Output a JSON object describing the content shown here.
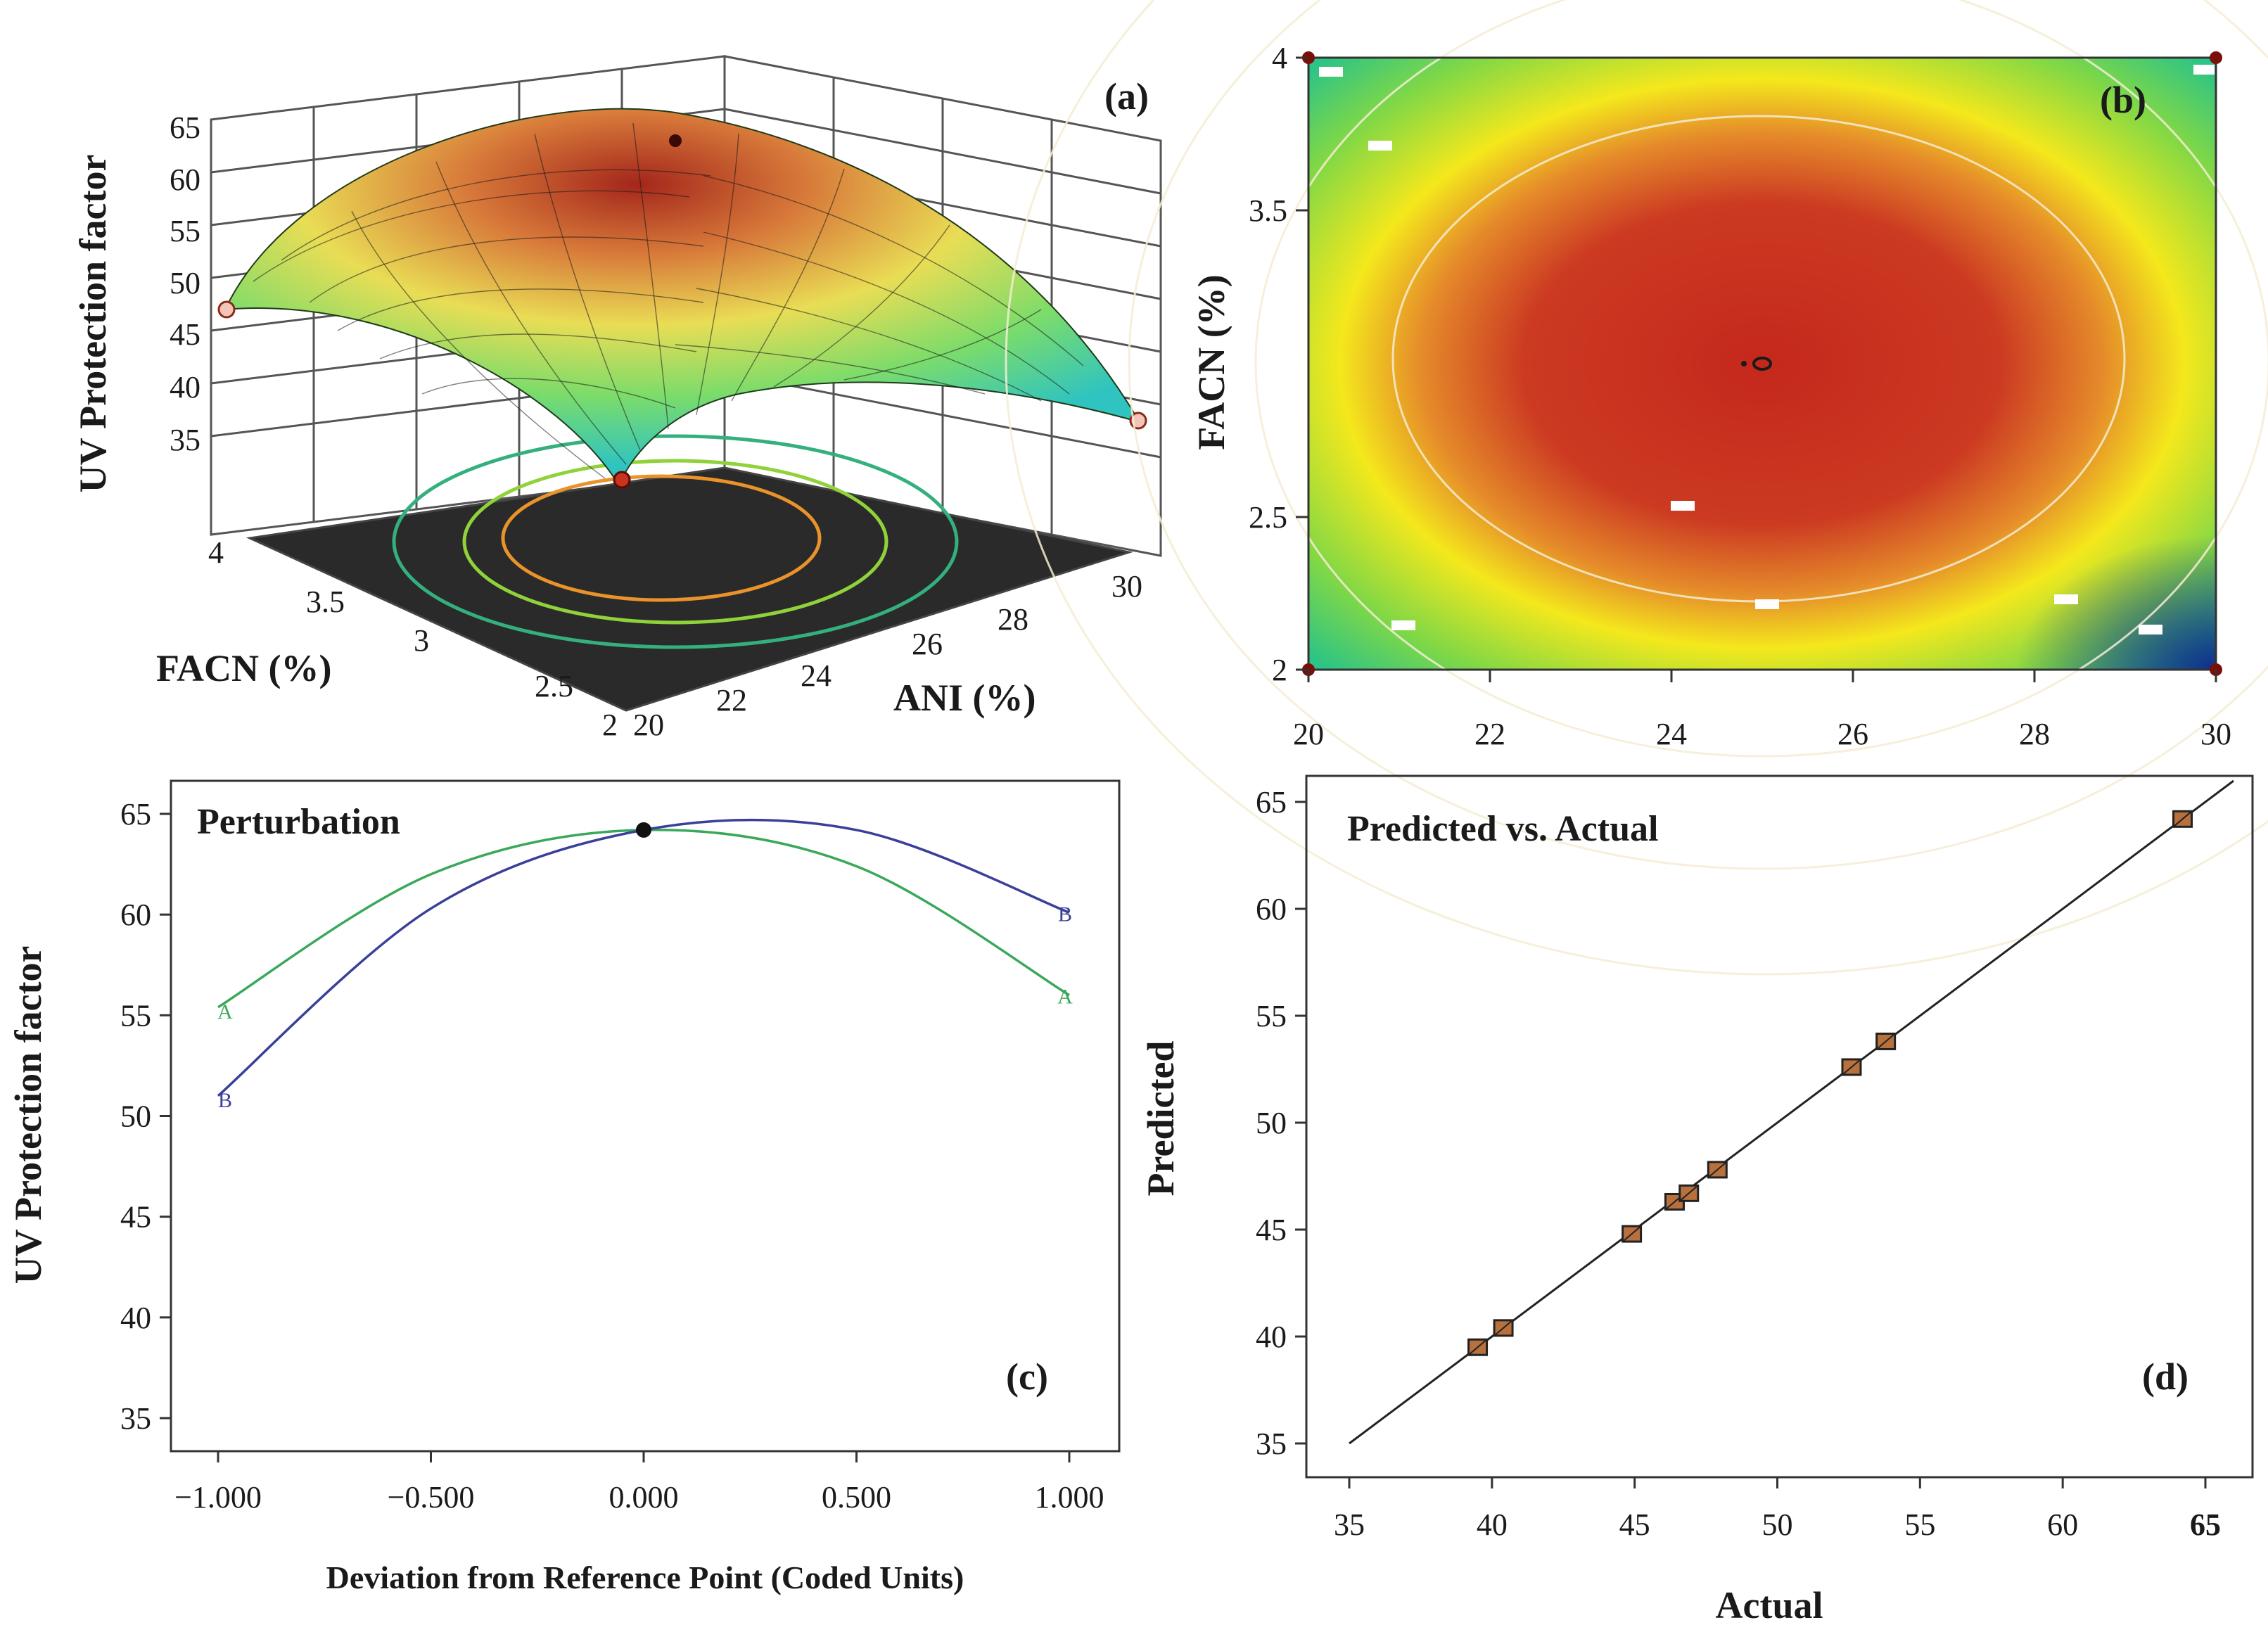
{
  "chart_data": [
    {
      "id": "a",
      "type": "surface3d",
      "panel_label": "(a)",
      "zlabel": "UV Protection factor",
      "xlabel": "ANI (%)",
      "ylabel": "FACN (%)",
      "z_ticks": [
        "35",
        "40",
        "45",
        "50",
        "55",
        "60",
        "65"
      ],
      "x_ticks": [
        "20",
        "22",
        "24",
        "26",
        "28",
        "30"
      ],
      "y_ticks": [
        "2",
        "2.5",
        "3",
        "3.5",
        "4"
      ],
      "x_range": [
        20,
        30
      ],
      "y_range": [
        2,
        4
      ],
      "z_range": [
        35,
        65
      ],
      "peak": {
        "ani": 25,
        "facn": 3,
        "uvpf": 64.2
      },
      "corner_points": [
        {
          "ani": 20,
          "facn": 4,
          "uvpf": 47.5
        },
        {
          "ani": 30,
          "facn": 2,
          "uvpf": 40.0
        },
        {
          "ani": 20,
          "facn": 2,
          "uvpf": 36.5
        }
      ]
    },
    {
      "id": "b",
      "type": "contour",
      "panel_label": "(b)",
      "ylabel": "FACN (%)",
      "x_ticks": [
        "20",
        "22",
        "24",
        "26",
        "28",
        "30"
      ],
      "y_ticks": [
        "2",
        "2.5",
        "3.5",
        "4"
      ],
      "x_range": [
        20,
        30
      ],
      "y_range": [
        2,
        4
      ],
      "optimum": {
        "ani": 25,
        "facn": 3
      },
      "design_points": [
        {
          "ani": 20,
          "facn": 4
        },
        {
          "ani": 30,
          "facn": 4
        },
        {
          "ani": 20,
          "facn": 2
        },
        {
          "ani": 30,
          "facn": 2
        },
        {
          "ani": 25,
          "facn": 3
        }
      ]
    },
    {
      "id": "c",
      "type": "line",
      "panel_label": "(c)",
      "title": "Perturbation",
      "xlabel": "Deviation from Reference Point (Coded Units)",
      "ylabel": "UV Protection factor",
      "x_ticks": [
        "−1.000",
        "−0.500",
        "0.000",
        "0.500",
        "1.000"
      ],
      "y_ticks": [
        "35",
        "40",
        "45",
        "50",
        "55",
        "60",
        "65"
      ],
      "xlim": [
        -1,
        1
      ],
      "ylim": [
        35,
        65
      ],
      "reference_point": {
        "x": 0,
        "y": 64.2
      },
      "series": [
        {
          "name": "A",
          "color": "#3aa85a",
          "x": [
            -1,
            -0.5,
            0,
            0.5,
            1
          ],
          "y": [
            55.4,
            62.0,
            64.2,
            62.4,
            56.0
          ]
        },
        {
          "name": "B",
          "color": "#3a3f99",
          "x": [
            -1,
            -0.5,
            0,
            0.5,
            1
          ],
          "y": [
            51.0,
            60.3,
            64.2,
            64.2,
            60.1
          ]
        }
      ]
    },
    {
      "id": "d",
      "type": "scatter",
      "panel_label": "(d)",
      "title": "Predicted vs. Actual",
      "xlabel": "Actual",
      "ylabel": "Predicted",
      "x_ticks": [
        "35",
        "40",
        "45",
        "50",
        "55",
        "60",
        "65"
      ],
      "y_ticks": [
        "35",
        "40",
        "45",
        "50",
        "55",
        "60",
        "65"
      ],
      "xlim": [
        33.5,
        66.5
      ],
      "ylim": [
        33.5,
        66
      ],
      "fit_line": {
        "from": [
          35,
          35
        ],
        "to": [
          65,
          65
        ]
      },
      "points": [
        {
          "actual": 39.5,
          "predicted": 39.5
        },
        {
          "actual": 40.4,
          "predicted": 40.4
        },
        {
          "actual": 44.9,
          "predicted": 44.8
        },
        {
          "actual": 46.4,
          "predicted": 46.3
        },
        {
          "actual": 46.9,
          "predicted": 46.7
        },
        {
          "actual": 47.9,
          "predicted": 47.8
        },
        {
          "actual": 52.6,
          "predicted": 52.6
        },
        {
          "actual": 53.8,
          "predicted": 53.8
        },
        {
          "actual": 64.2,
          "predicted": 64.2
        }
      ]
    }
  ],
  "colors": {
    "surface_high": "#a82a1e",
    "surface_mid": "#e8d84a",
    "surface_low": "#2fc4c0",
    "contour_hot": "#c8321f",
    "contour_yellow": "#f2e61c",
    "contour_green": "#4cc55a",
    "contour_blue": "#1a3ea0",
    "point_fill": "#b8703d"
  }
}
